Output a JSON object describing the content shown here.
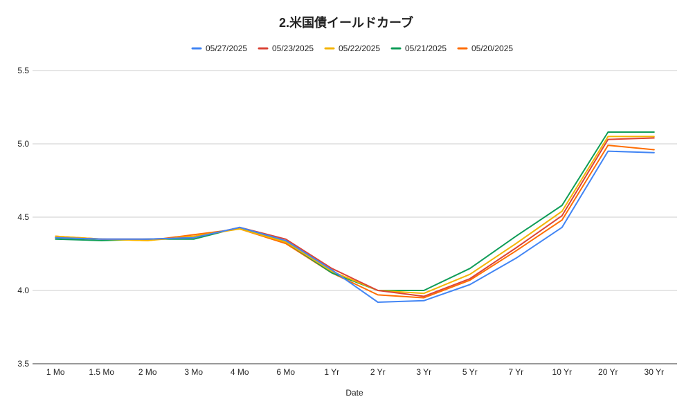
{
  "chart_data": {
    "type": "line",
    "title": "2.米国債イールドカーブ",
    "xlabel": "Date",
    "ylabel": "",
    "ylim": [
      3.5,
      5.5
    ],
    "yticks": [
      "3.5",
      "4.0",
      "4.5",
      "5.0",
      "5.5"
    ],
    "grid": true,
    "legend_position": "top",
    "categories": [
      "1 Mo",
      "1.5 Mo",
      "2 Mo",
      "3 Mo",
      "4 Mo",
      "6 Mo",
      "1 Yr",
      "2 Yr",
      "3 Yr",
      "5 Yr",
      "7 Yr",
      "10 Yr",
      "20 Yr",
      "30 Yr"
    ],
    "series": [
      {
        "name": "05/27/2025",
        "color": "#4285f4",
        "values": [
          4.36,
          4.35,
          4.35,
          4.36,
          4.43,
          4.34,
          4.14,
          3.92,
          3.93,
          4.04,
          4.22,
          4.43,
          4.95,
          4.94
        ]
      },
      {
        "name": "05/23/2025",
        "color": "#db4437",
        "values": [
          4.36,
          4.35,
          4.35,
          4.36,
          4.43,
          4.35,
          4.15,
          4.0,
          3.96,
          4.08,
          4.29,
          4.51,
          5.03,
          5.04
        ]
      },
      {
        "name": "05/22/2025",
        "color": "#f4b400",
        "values": [
          4.37,
          4.35,
          4.34,
          4.37,
          4.42,
          4.33,
          4.13,
          4.0,
          3.98,
          4.11,
          4.32,
          4.54,
          5.05,
          5.05
        ]
      },
      {
        "name": "05/21/2025",
        "color": "#0f9d58",
        "values": [
          4.35,
          4.34,
          4.35,
          4.35,
          4.43,
          4.33,
          4.12,
          4.0,
          4.0,
          4.15,
          4.37,
          4.58,
          5.08,
          5.08
        ]
      },
      {
        "name": "05/20/2025",
        "color": "#ff6d00",
        "values": [
          4.37,
          4.35,
          4.34,
          4.38,
          4.42,
          4.32,
          4.12,
          3.97,
          3.95,
          4.07,
          4.27,
          4.48,
          4.99,
          4.96
        ]
      }
    ]
  }
}
